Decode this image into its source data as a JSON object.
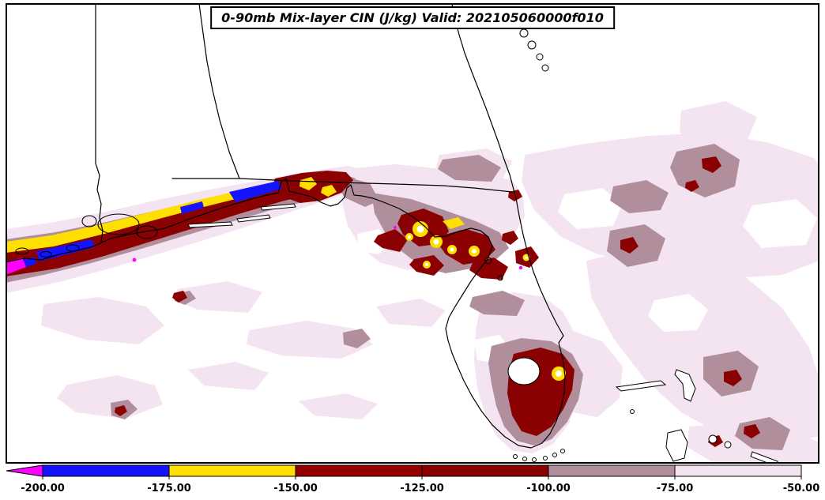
{
  "title_bar": {
    "text": "0-90mb Mix-layer CIN (J/kg) Valid: 202105060000f010"
  },
  "chart_data": {
    "type": "heatmap",
    "title": "0-90mb Mix-layer CIN (J/kg) Valid: 202105060000f010",
    "variable": "Mix-layer CIN",
    "layer": "0-90mb",
    "units": "J/kg",
    "valid": "202105060000f010",
    "legend_position": "bottom",
    "colorbar": {
      "orientation": "horizontal",
      "tick_labels": [
        "-200.00",
        "-175.00",
        "-150.00",
        "-125.00",
        "-100.00",
        "-75.00",
        "-50.00"
      ],
      "tick_values": [
        -200,
        -175,
        -150,
        -125,
        -100,
        -75,
        -50
      ],
      "under_arrow_color": "#ff00ff",
      "bins": [
        {
          "from": -200,
          "to": -175,
          "color": "#1414ff"
        },
        {
          "from": -175,
          "to": -150,
          "color": "#ffdf00"
        },
        {
          "from": -150,
          "to": -125,
          "color": "#970000"
        },
        {
          "from": -125,
          "to": -100,
          "color": "#8b0000"
        },
        {
          "from": -100,
          "to": -75,
          "color": "#b08e9b"
        },
        {
          "from": -75,
          "to": -50,
          "color": "#f4e3f1"
        }
      ]
    }
  },
  "colors": {
    "magenta": "#ff00ff",
    "blue": "#1414ff",
    "yellow": "#ffdf00",
    "dark_red": "#8b0000",
    "mauve": "#b08e9b",
    "pale_pink": "#f4e3f1",
    "outline": "#000000",
    "background": "#ffffff"
  }
}
